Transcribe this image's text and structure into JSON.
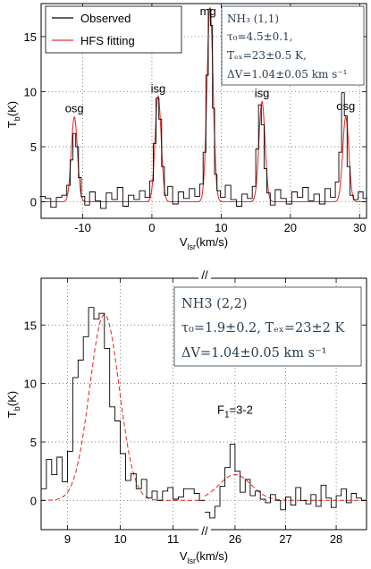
{
  "chart_data": [
    {
      "type": "line",
      "xlabel": "V",
      "xlabel_sub": "lsr",
      "xlabel_unit": "(km/s)",
      "ylabel": "T",
      "ylabel_sub": "b",
      "ylabel_unit": "(K)",
      "xlim": [
        -16,
        31
      ],
      "ylim": [
        -1.5,
        18
      ],
      "xticks": [
        -10,
        0,
        10,
        20,
        30
      ],
      "yticks": [
        0,
        5,
        10,
        15
      ],
      "grid": true,
      "legend_position": "top-left",
      "series": [
        {
          "name": "Observed",
          "color": "#000000",
          "style": "step",
          "x": [
            -15.8,
            -15.0,
            -14.2,
            -13.4,
            -12.6,
            -12.0,
            -11.6,
            -11.2,
            -10.8,
            -10.4,
            -10.0,
            -9.4,
            -8.6,
            -7.8,
            -7.0,
            -6.2,
            -5.4,
            -4.6,
            -3.8,
            -3.0,
            -2.2,
            -1.4,
            -0.6,
            0.0,
            0.4,
            0.8,
            1.2,
            1.6,
            2.0,
            2.6,
            3.4,
            4.2,
            5.0,
            5.8,
            6.6,
            7.2,
            7.6,
            8.0,
            8.3,
            8.6,
            8.9,
            9.2,
            9.6,
            10.2,
            11.0,
            11.8,
            12.6,
            13.4,
            14.2,
            14.8,
            15.2,
            15.6,
            16.0,
            16.4,
            16.8,
            17.4,
            18.2,
            19.0,
            19.8,
            20.6,
            21.4,
            22.2,
            23.0,
            23.8,
            24.6,
            25.4,
            26.2,
            26.8,
            27.2,
            27.6,
            28.0,
            28.4,
            28.8,
            29.4,
            30.2,
            30.8
          ],
          "y": [
            0.5,
            0.3,
            -0.5,
            0.4,
            0.6,
            1.5,
            3.8,
            6.2,
            5.0,
            2.2,
            0.5,
            -0.3,
            0.9,
            0.1,
            -0.6,
            0.8,
            0.2,
            1.3,
            -0.4,
            0.6,
            0.2,
            1.0,
            0.4,
            1.9,
            5.3,
            9.4,
            7.5,
            3.2,
            0.6,
            1.4,
            -0.2,
            0.9,
            0.3,
            1.2,
            0.5,
            1.6,
            4.5,
            11.5,
            17.5,
            16.0,
            8.5,
            2.5,
            1.0,
            0.4,
            1.5,
            0.2,
            -0.4,
            0.7,
            0.3,
            1.4,
            4.8,
            8.8,
            7.0,
            3.0,
            0.8,
            -0.3,
            1.1,
            0.3,
            -0.2,
            0.9,
            0.4,
            1.3,
            0.1,
            0.7,
            -0.2,
            1.2,
            0.4,
            1.8,
            4.5,
            9.9,
            7.8,
            3.2,
            0.6,
            0.2,
            0.9,
            0.3
          ]
        },
        {
          "name": "HFS fitting",
          "color": "#e8322f",
          "style": "line",
          "centers": [
            -11.2,
            0.9,
            8.4,
            15.9,
            28.0
          ],
          "amplitudes": [
            7.7,
            9.6,
            17.6,
            9.1,
            7.7
          ],
          "fwhm": 1.04
        }
      ],
      "annotations": [
        {
          "text": "osg",
          "x": -11.2,
          "y": 7.8
        },
        {
          "text": "isg",
          "x": 0.9,
          "y": 9.6
        },
        {
          "text": "mg",
          "x": 8.1,
          "y": 16.6
        },
        {
          "text": "isg",
          "x": 15.9,
          "y": 9.2
        },
        {
          "text": "osg",
          "x": 28.0,
          "y": 8.0
        }
      ],
      "info_box": {
        "line1": "NH₃ (1,1)",
        "line2": "τ₀=4.5±0.1,",
        "line3": "Tₑₓ=23±0.5 K,",
        "line4": "ΔV=1.04±0.05 km s⁻¹"
      }
    },
    {
      "type": "line",
      "xlabel": "V",
      "xlabel_sub": "lsr",
      "xlabel_unit": "(km/s)",
      "ylabel": "T",
      "ylabel_sub": "b",
      "ylabel_unit": "(K)",
      "ylim": [
        -2.5,
        19
      ],
      "yticks": [
        0,
        5,
        10,
        15
      ],
      "grid": true,
      "broken_axis": true,
      "break_symbol": "//",
      "segments": [
        {
          "xlim": [
            8.5,
            11.6
          ],
          "xticks": [
            9,
            10,
            11
          ]
        },
        {
          "xlim": [
            25.4,
            28.6
          ],
          "xticks": [
            26,
            27,
            28
          ]
        }
      ],
      "series": [
        {
          "name": "Observed",
          "color": "#000000",
          "style": "step",
          "segment1": {
            "x": [
              8.55,
              8.65,
              8.75,
              8.85,
              8.95,
              9.05,
              9.15,
              9.25,
              9.35,
              9.45,
              9.55,
              9.65,
              9.75,
              9.85,
              9.95,
              10.05,
              10.15,
              10.25,
              10.35,
              10.45,
              10.55,
              10.65,
              10.75,
              10.85,
              10.95,
              11.05,
              11.15,
              11.25,
              11.35,
              11.45,
              11.55
            ],
            "y": [
              1.0,
              3.5,
              2.2,
              3.7,
              1.6,
              4.2,
              10.5,
              12.0,
              14.0,
              16.5,
              15.5,
              16.0,
              13.0,
              8.0,
              6.8,
              4.0,
              1.7,
              2.3,
              1.0,
              1.8,
              0.2,
              0.8,
              0.0,
              0.8,
              1.1,
              0.1,
              0.3,
              1.0,
              1.0,
              0.6,
              0.0
            ]
          },
          "segment2": {
            "x": [
              25.45,
              25.55,
              25.65,
              25.75,
              25.85,
              25.95,
              26.05,
              26.15,
              26.25,
              26.35,
              26.45,
              26.55,
              26.65,
              26.75,
              26.85,
              26.95,
              27.05,
              27.15,
              27.25,
              27.35,
              27.45,
              27.55,
              27.65,
              27.75,
              27.85,
              27.95,
              28.05,
              28.15,
              28.25,
              28.35,
              28.45,
              28.55
            ],
            "y": [
              -1.0,
              -1.5,
              -0.5,
              1.2,
              2.8,
              4.8,
              2.5,
              0.7,
              1.8,
              0.4,
              0.8,
              0.1,
              -0.2,
              0.5,
              0.0,
              -0.8,
              0.3,
              -0.4,
              1.1,
              0.0,
              -0.3,
              0.5,
              -0.5,
              1.3,
              0.2,
              -0.6,
              0.4,
              1.0,
              -0.2,
              0.6,
              0.2,
              0.0
            ]
          }
        },
        {
          "name": "HFS fitting",
          "color": "#e8322f",
          "style": "dashed",
          "segment1": {
            "center": 9.7,
            "amplitude": 15.9,
            "sigma": 0.28
          },
          "segment2": {
            "center": 26.0,
            "amplitude": 2.2,
            "sigma": 0.32
          }
        }
      ],
      "annotations": [
        {
          "text": "F",
          "sub": "1",
          "rest": "=3-2",
          "x": 26.0,
          "y": 7.4
        }
      ],
      "info_box": {
        "line1": "NH3 (2,2)",
        "line2": "τ₀=1.9±0.2, Tₑₓ=23±2 K",
        "line3": "ΔV=1.04±0.05 km s⁻¹"
      }
    }
  ]
}
